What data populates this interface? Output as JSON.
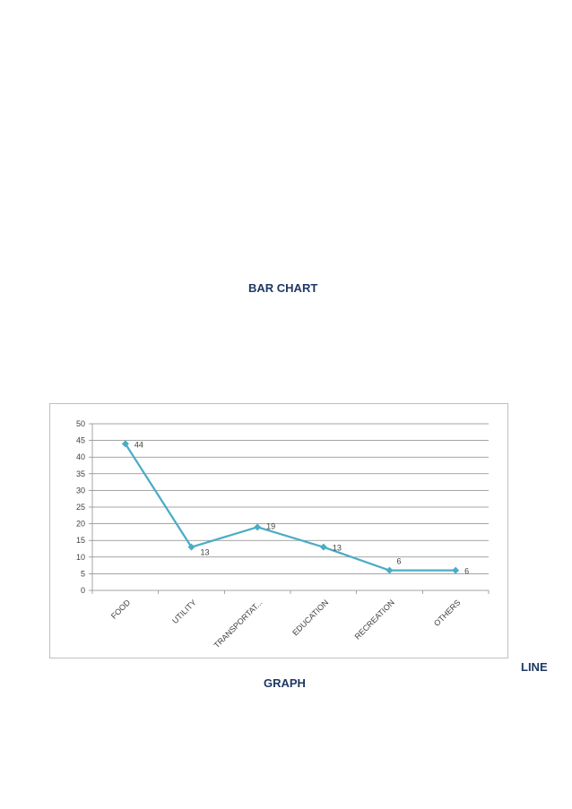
{
  "captions": {
    "bar_chart": "BAR CHART",
    "line_part_1": "LINE",
    "line_part_2": "GRAPH"
  },
  "colors": {
    "series": "#4bacc6",
    "caption": "#1f3864",
    "grid": "#868686"
  },
  "chart_data": {
    "type": "line",
    "categories": [
      "FOOD",
      "UTILITY",
      "TRANSPORTAT...",
      "EDUCATION",
      "RECREATION",
      "OTHERS"
    ],
    "series": [
      {
        "values": [
          44,
          13,
          19,
          13,
          6,
          6
        ]
      }
    ],
    "ylim": [
      0,
      50
    ],
    "yticks": [
      0,
      5,
      10,
      15,
      20,
      25,
      30,
      35,
      40,
      45,
      50
    ],
    "grid": true,
    "data_labels": true,
    "marker": "diamond"
  }
}
